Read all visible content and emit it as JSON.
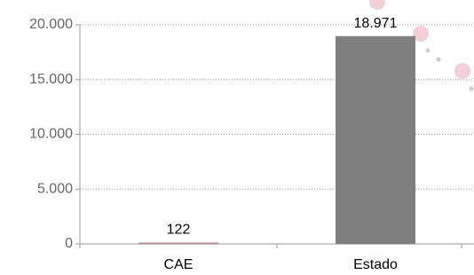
{
  "chart_data": {
    "type": "bar",
    "categories": [
      "CAE",
      "Estado"
    ],
    "values": [
      122,
      18971
    ],
    "value_labels": [
      "122",
      "18.971"
    ],
    "colors": [
      "#c97a86",
      "#7f7f7f"
    ],
    "ylim": [
      0,
      20000
    ],
    "yticks": [
      0,
      {
        "value": 5000,
        "label": "5.000"
      },
      {
        "value": 10000,
        "label": "10.000"
      },
      {
        "value": 15000,
        "label": "15.000"
      },
      {
        "value": 20000,
        "label": "20.000"
      }
    ],
    "grid": true
  }
}
